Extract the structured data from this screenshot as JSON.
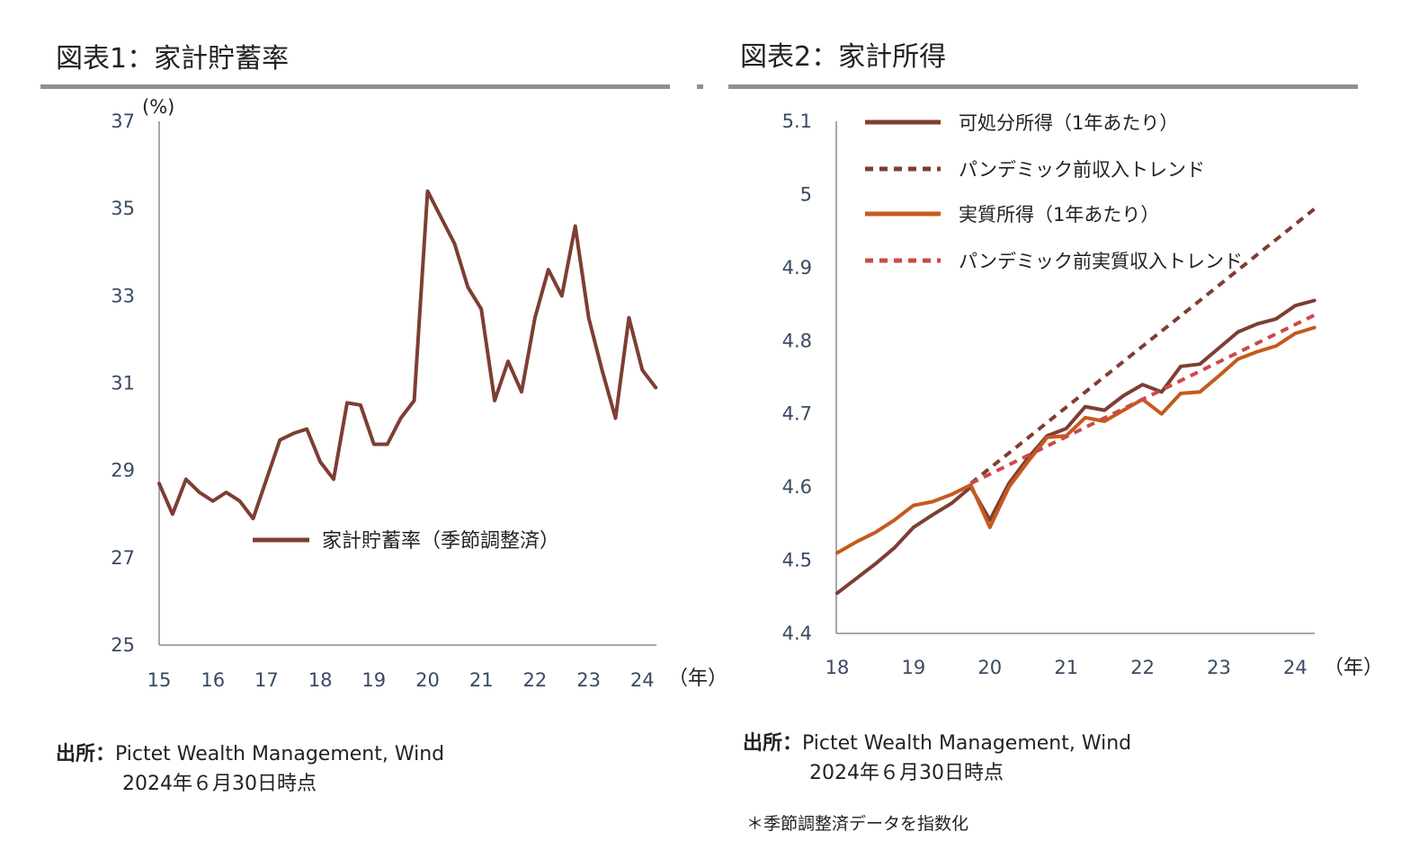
{
  "charts": {
    "left": {
      "title": "図表1：家計貯蓄率",
      "source_label": "出所：",
      "source_text": "Pictet Wealth Management, Wind",
      "as_of": "2024年６月30日時点"
    },
    "right": {
      "title": "図表2：家計所得",
      "source_label": "出所：",
      "source_text": "Pictet Wealth Management, Wind",
      "as_of": "2024年６月30日時点",
      "footnote": "＊季節調整済データを指数化"
    }
  },
  "chart_data": [
    {
      "type": "line",
      "title": "図表1：家計貯蓄率",
      "ylabel": "(%)",
      "xlabel": "（年）",
      "ylim": [
        25,
        37
      ],
      "xlim": [
        15,
        24.25
      ],
      "yticks": [
        "25",
        "27",
        "29",
        "31",
        "33",
        "35",
        "37"
      ],
      "xticks": [
        "15",
        "16",
        "17",
        "18",
        "19",
        "20",
        "21",
        "22",
        "23",
        "24"
      ],
      "grid": false,
      "legend": "center",
      "colors": {
        "savings": "#7d3e33"
      },
      "series": [
        {
          "name": "家計貯蓄率（季節調整済）",
          "x": [
            15,
            15.25,
            15.5,
            15.75,
            16,
            16.25,
            16.5,
            16.75,
            17,
            17.25,
            17.5,
            17.75,
            18,
            18.25,
            18.5,
            18.75,
            19,
            19.25,
            19.5,
            19.75,
            20,
            20.25,
            20.5,
            20.75,
            21,
            21.25,
            21.5,
            21.75,
            22,
            22.25,
            22.5,
            22.75,
            23,
            23.25,
            23.5,
            23.75,
            24,
            24.25
          ],
          "values": [
            28.7,
            28.0,
            28.8,
            28.5,
            28.3,
            28.5,
            28.3,
            27.9,
            28.8,
            29.7,
            29.85,
            29.95,
            29.2,
            28.8,
            30.55,
            30.5,
            29.6,
            29.6,
            30.2,
            30.6,
            35.4,
            34.8,
            34.2,
            33.2,
            32.7,
            30.6,
            31.5,
            30.8,
            32.5,
            33.6,
            33.0,
            34.6,
            32.5,
            31.3,
            30.2,
            32.5,
            31.3,
            30.9
          ]
        }
      ]
    },
    {
      "type": "line",
      "title": "図表2：家計所得",
      "xlabel": "（年）",
      "ylim": [
        4.4,
        5.1
      ],
      "xlim": [
        18,
        24.25
      ],
      "yticks": [
        "4.4",
        "4.5",
        "4.6",
        "4.7",
        "4.8",
        "4.9",
        "5",
        "5.1"
      ],
      "xticks": [
        "18",
        "19",
        "20",
        "21",
        "22",
        "23",
        "24"
      ],
      "grid": false,
      "legend": "top-left",
      "colors": {
        "disposable": "#7d3e33",
        "disposable_trend": "#7d3e33",
        "real": "#c55a1e",
        "real_trend": "#cc4a46"
      },
      "series": [
        {
          "name": "可処分所得（1年あたり）",
          "style": "solid",
          "x": [
            18,
            18.25,
            18.5,
            18.75,
            19,
            19.25,
            19.5,
            19.75,
            20,
            20.25,
            20.5,
            20.75,
            21,
            21.25,
            21.5,
            21.75,
            22,
            22.25,
            22.5,
            22.75,
            23,
            23.25,
            23.5,
            23.75,
            24,
            24.25
          ],
          "values": [
            4.455,
            4.475,
            4.495,
            4.517,
            4.545,
            4.562,
            4.578,
            4.6,
            4.555,
            4.605,
            4.64,
            4.67,
            4.68,
            4.71,
            4.705,
            4.725,
            4.74,
            4.73,
            4.765,
            4.768,
            4.79,
            4.812,
            4.823,
            4.83,
            4.848,
            4.855
          ]
        },
        {
          "name": "パンデミック前収入トレンド",
          "style": "dashed",
          "x": [
            19.75,
            24.25
          ],
          "values": [
            4.605,
            4.98
          ]
        },
        {
          "name": "実質所得（1年あたり）",
          "style": "solid",
          "x": [
            18,
            18.25,
            18.5,
            18.75,
            19,
            19.25,
            19.5,
            19.75,
            20,
            20.25,
            20.5,
            20.75,
            21,
            21.25,
            21.5,
            21.75,
            22,
            22.25,
            22.5,
            22.75,
            23,
            23.25,
            23.5,
            23.75,
            24,
            24.25
          ],
          "values": [
            4.51,
            4.525,
            4.538,
            4.555,
            4.575,
            4.58,
            4.59,
            4.603,
            4.545,
            4.6,
            4.635,
            4.668,
            4.67,
            4.695,
            4.69,
            4.705,
            4.72,
            4.7,
            4.728,
            4.73,
            4.752,
            4.775,
            4.785,
            4.793,
            4.81,
            4.818
          ]
        },
        {
          "name": "パンデミック前実質収入トレンド",
          "style": "dashed",
          "x": [
            19.75,
            24.25
          ],
          "values": [
            4.605,
            4.835
          ]
        }
      ]
    }
  ]
}
